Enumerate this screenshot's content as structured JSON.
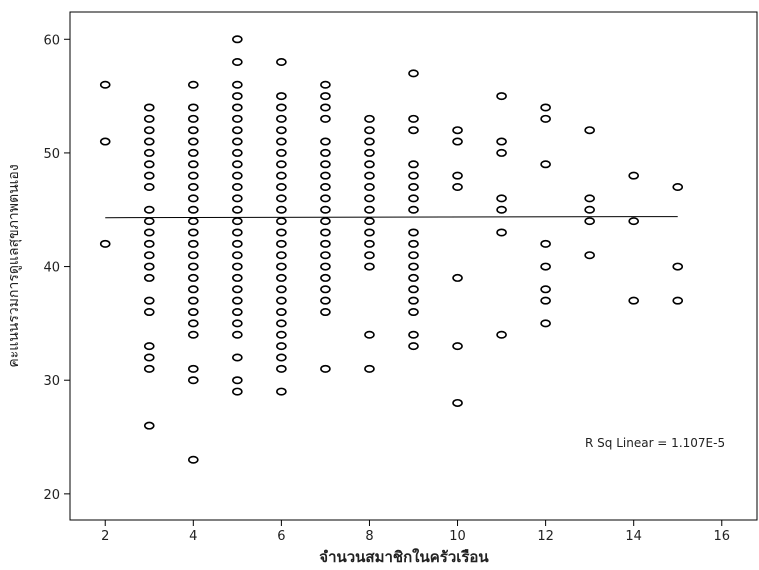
{
  "chart_data": {
    "type": "scatter",
    "x_label": "จำนวนสมาชิกในครัวเรือน",
    "y_label": "คะแนนรวมการดูแลสุขภาพตนเอง",
    "annotation": "R Sq Linear = 1.107E-5",
    "xlim": [
      1.2,
      16.8
    ],
    "ylim": [
      17.7,
      62.4
    ],
    "xticks": [
      2,
      4,
      6,
      8,
      10,
      12,
      14,
      16
    ],
    "yticks": [
      20,
      30,
      40,
      50,
      60
    ],
    "color": "#000000",
    "x": [
      2,
      2,
      2,
      3,
      3,
      3,
      3,
      3,
      3,
      3,
      3,
      3,
      3,
      3,
      3,
      3,
      3,
      3,
      3,
      3,
      3,
      3,
      3,
      3,
      4,
      4,
      4,
      4,
      4,
      4,
      4,
      4,
      4,
      4,
      4,
      4,
      4,
      4,
      4,
      4,
      4,
      4,
      4,
      4,
      4,
      4,
      4,
      4,
      4,
      5,
      5,
      5,
      5,
      5,
      5,
      5,
      5,
      5,
      5,
      5,
      5,
      5,
      5,
      5,
      5,
      5,
      5,
      5,
      5,
      5,
      5,
      5,
      5,
      5,
      5,
      5,
      5,
      6,
      6,
      6,
      6,
      6,
      6,
      6,
      6,
      6,
      6,
      6,
      6,
      6,
      6,
      6,
      6,
      6,
      6,
      6,
      6,
      6,
      6,
      6,
      6,
      6,
      6,
      6,
      7,
      7,
      7,
      7,
      7,
      7,
      7,
      7,
      7,
      7,
      7,
      7,
      7,
      7,
      7,
      7,
      7,
      7,
      7,
      7,
      7,
      8,
      8,
      8,
      8,
      8,
      8,
      8,
      8,
      8,
      8,
      8,
      8,
      8,
      8,
      8,
      8,
      9,
      9,
      9,
      9,
      9,
      9,
      9,
      9,
      9,
      9,
      9,
      9,
      9,
      9,
      9,
      9,
      9,
      9,
      10,
      10,
      10,
      10,
      10,
      10,
      10,
      11,
      11,
      11,
      11,
      11,
      11,
      11,
      12,
      12,
      12,
      12,
      12,
      12,
      12,
      12,
      13,
      13,
      13,
      13,
      13,
      14,
      14,
      14,
      15,
      15,
      15
    ],
    "values": [
      56,
      51,
      42,
      54,
      53,
      52,
      51,
      50,
      49,
      48,
      47,
      45,
      44,
      43,
      42,
      41,
      40,
      39,
      37,
      36,
      33,
      32,
      31,
      26,
      56,
      54,
      53,
      52,
      51,
      50,
      49,
      48,
      47,
      46,
      45,
      44,
      43,
      42,
      41,
      40,
      39,
      38,
      37,
      36,
      35,
      34,
      31,
      30,
      23,
      60,
      58,
      56,
      55,
      54,
      53,
      52,
      51,
      50,
      49,
      48,
      47,
      46,
      45,
      44,
      43,
      42,
      41,
      40,
      39,
      38,
      37,
      36,
      35,
      34,
      32,
      30,
      29,
      58,
      55,
      54,
      53,
      52,
      51,
      50,
      49,
      48,
      47,
      46,
      45,
      44,
      43,
      42,
      41,
      40,
      39,
      38,
      37,
      36,
      35,
      34,
      33,
      32,
      31,
      29,
      56,
      55,
      54,
      53,
      51,
      50,
      49,
      48,
      47,
      46,
      45,
      44,
      43,
      42,
      41,
      40,
      39,
      38,
      37,
      36,
      31,
      53,
      52,
      51,
      50,
      49,
      48,
      47,
      46,
      45,
      44,
      43,
      42,
      41,
      40,
      34,
      31,
      57,
      53,
      52,
      49,
      48,
      47,
      46,
      45,
      43,
      42,
      41,
      40,
      39,
      38,
      37,
      36,
      34,
      33,
      52,
      51,
      48,
      47,
      39,
      33,
      28,
      55,
      51,
      50,
      46,
      45,
      43,
      34,
      54,
      53,
      49,
      42,
      40,
      38,
      37,
      35,
      52,
      46,
      45,
      44,
      41,
      48,
      44,
      37,
      47,
      40,
      37
    ],
    "fit_line": {
      "x": [
        2,
        15
      ],
      "values": [
        44.3,
        44.4
      ]
    }
  }
}
